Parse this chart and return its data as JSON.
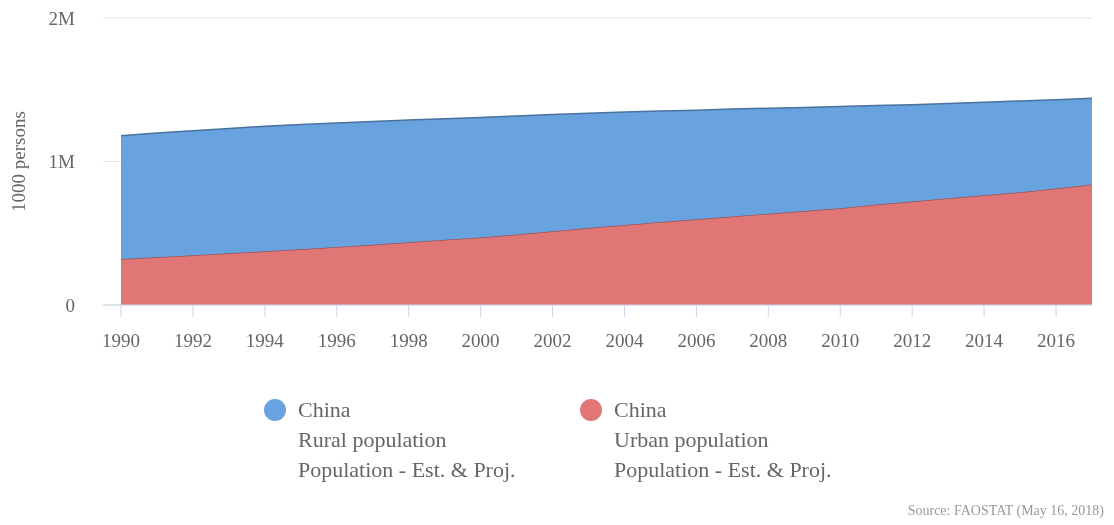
{
  "chart_data": {
    "type": "area",
    "stacked": true,
    "ylabel": "1000 persons",
    "x": [
      1990,
      1991,
      1992,
      1993,
      1994,
      1995,
      1996,
      1997,
      1998,
      1999,
      2000,
      2001,
      2002,
      2003,
      2004,
      2005,
      2006,
      2007,
      2008,
      2009,
      2010,
      2011,
      2012,
      2013,
      2014,
      2015,
      2016,
      2017
    ],
    "xlim": [
      1989.5,
      2017
    ],
    "xticks": [
      1990,
      1992,
      1994,
      1996,
      1998,
      2000,
      2002,
      2004,
      2006,
      2008,
      2010,
      2012,
      2014,
      2016
    ],
    "ylim": [
      0,
      2000000
    ],
    "yticks": [
      0,
      {
        "value": 1000000,
        "label": "1M"
      },
      {
        "value": 2000000,
        "label": "2M"
      }
    ],
    "grid": "y",
    "legend": "bottom",
    "series": [
      {
        "name": "China\nUrban population\nPopulation - Est. & Proj.",
        "color": "#e07676",
        "values": [
          320000,
          333000,
          346000,
          360000,
          374000,
          388000,
          404000,
          420000,
          437000,
          455000,
          470000,
          492000,
          514000,
          536000,
          557000,
          578000,
          598000,
          617000,
          636000,
          655000,
          674000,
          700000,
          722000,
          744000,
          764000,
          786000,
          812000,
          840000
        ]
      },
      {
        "name": "China\nRural population\nPopulation - Est. & Proj.",
        "color": "#68a3e0",
        "values": [
          860000,
          865000,
          868000,
          870000,
          871000,
          869000,
          864000,
          859000,
          852000,
          843000,
          837000,
          825000,
          813000,
          800000,
          788000,
          774000,
          760000,
          748000,
          735000,
          722000,
          710000,
          690000,
          674000,
          660000,
          649000,
          636000,
          619000,
          600000
        ]
      }
    ],
    "annotations": [
      "Source: FAOSTAT (May 16, 2018)"
    ]
  }
}
